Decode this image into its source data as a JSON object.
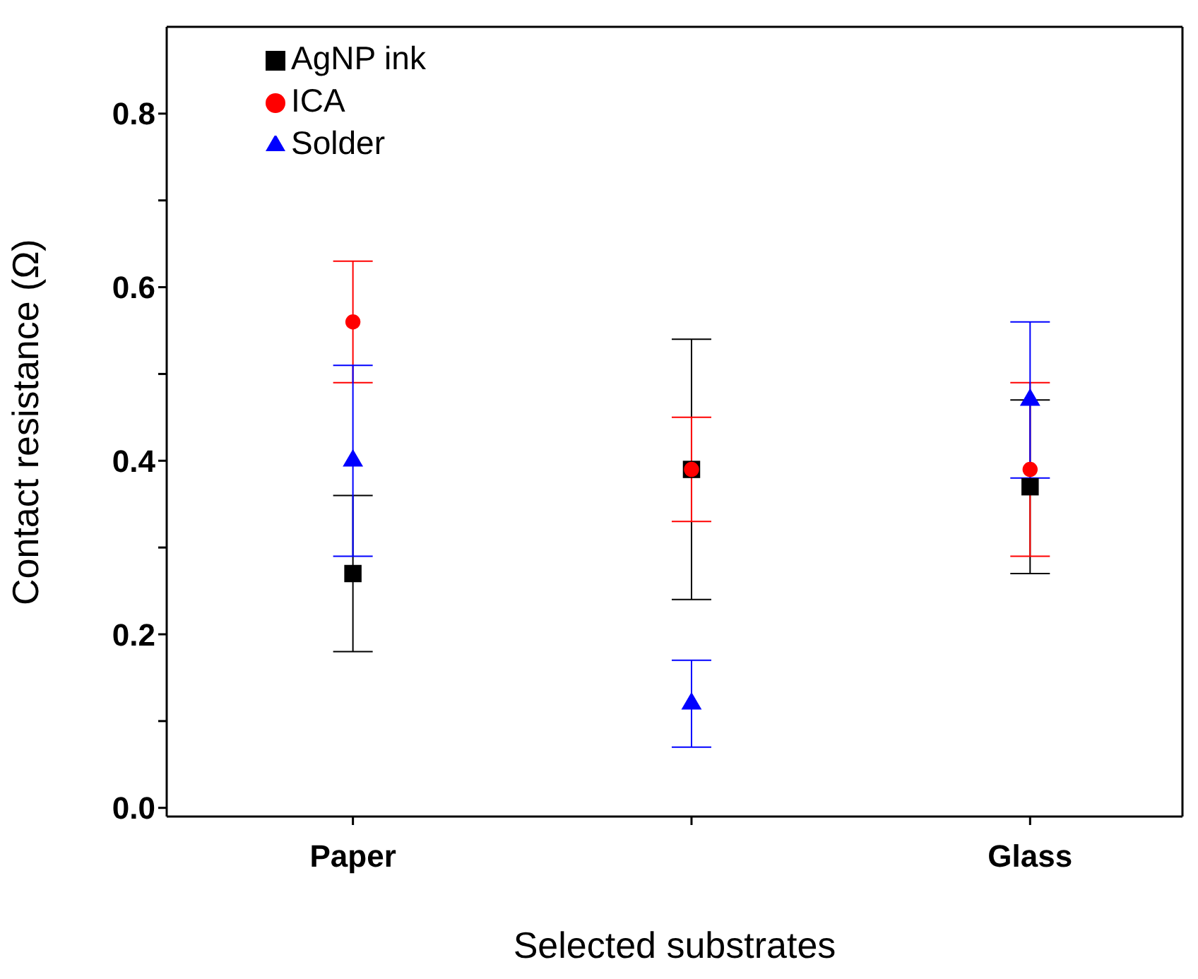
{
  "chart_data": {
    "type": "scatter",
    "xlabel": "Selected substrates",
    "ylabel": "Contact resistance (Ω)",
    "categories": [
      "Paper",
      null,
      "Glass"
    ],
    "ylim": [
      -0.01,
      0.9
    ],
    "yticks": [
      {
        "value": 0,
        "label": "0.0"
      },
      {
        "value": 0.1,
        "label": null
      },
      0.2,
      {
        "value": 0.3,
        "label": null
      },
      0.4,
      {
        "value": 0.5,
        "label": null
      },
      0.6,
      {
        "value": 0.7,
        "label": null
      },
      0.8
    ],
    "legend": "top left",
    "grid": false,
    "series": [
      {
        "name": "AgNP ink",
        "color": "#000000",
        "marker": "square",
        "values": [
          0.27,
          0.39,
          0.37
        ],
        "errors": [
          [
            0.18,
            0.36
          ],
          [
            0.24,
            0.54
          ],
          [
            0.27,
            0.47
          ]
        ]
      },
      {
        "name": "ICA",
        "color": "#ff0000",
        "marker": "circle",
        "values": [
          0.56,
          0.39,
          0.39
        ],
        "errors": [
          [
            0.49,
            0.63
          ],
          [
            0.33,
            0.45
          ],
          [
            0.29,
            0.49
          ]
        ]
      },
      {
        "name": "Solder",
        "color": "#0000ff",
        "marker": "triangle",
        "values": [
          0.4,
          0.12,
          0.47
        ],
        "errors": [
          [
            0.29,
            0.51
          ],
          [
            0.07,
            0.17
          ],
          [
            0.38,
            0.56
          ]
        ]
      }
    ]
  }
}
